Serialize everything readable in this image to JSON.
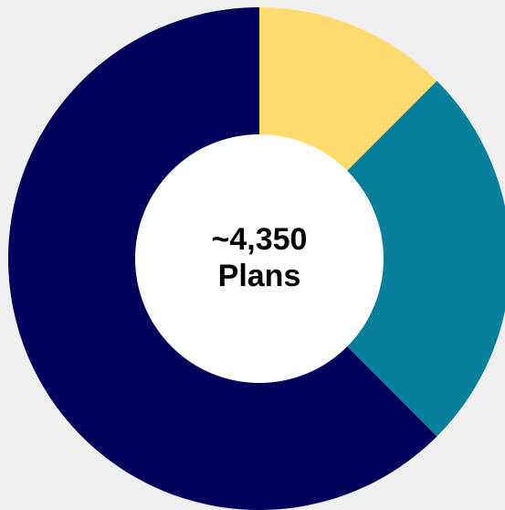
{
  "chart_data": {
    "type": "pie",
    "variant": "donut",
    "slices": [
      {
        "value": 12.5,
        "color": "#ffda6e"
      },
      {
        "value": 25,
        "color": "#087f9b"
      },
      {
        "value": 62.5,
        "color": "#00005c"
      }
    ],
    "center_text": {
      "line1": "~4,350",
      "line2": "Plans"
    },
    "legend": "none",
    "grid": false
  },
  "colors": {
    "background": "#f0f0f0",
    "hole": "#ffffff"
  }
}
